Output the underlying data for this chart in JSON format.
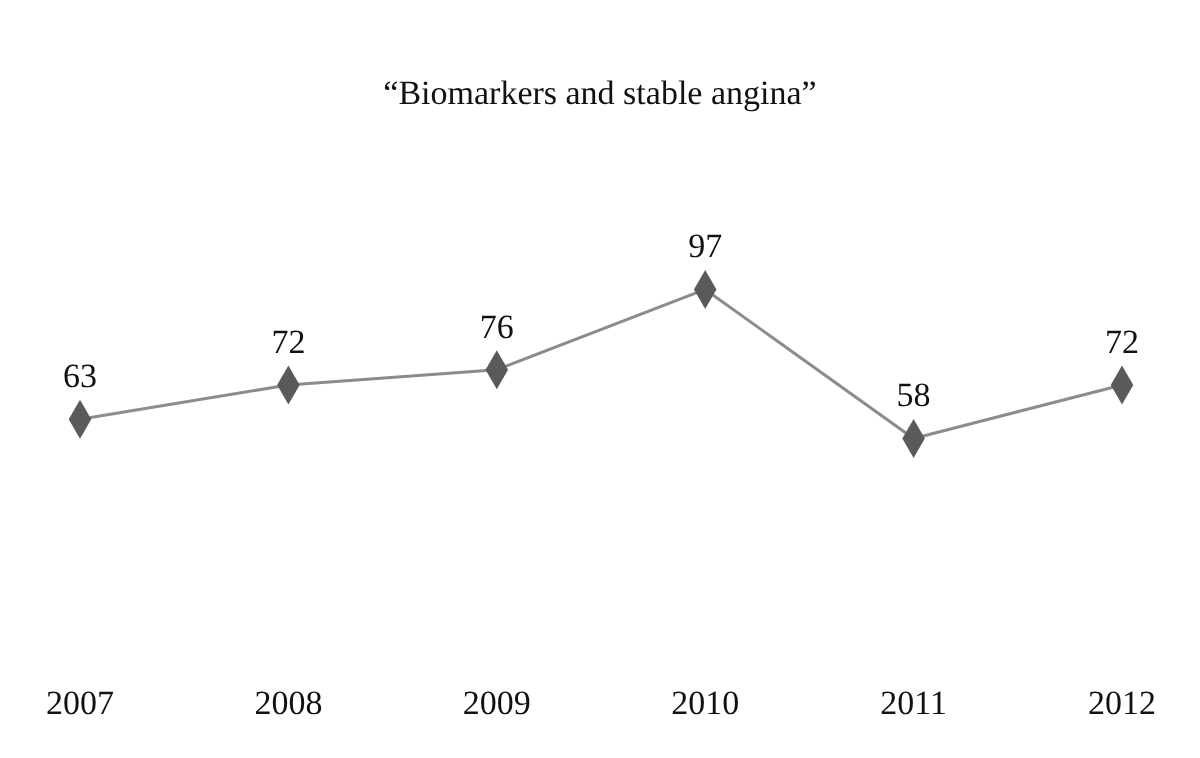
{
  "chart_data": {
    "type": "line",
    "title": "“Biomarkers and stable angina”",
    "categories": [
      "2007",
      "2008",
      "2009",
      "2010",
      "2011",
      "2012"
    ],
    "series": [
      {
        "color": "#5a5a5a",
        "values": [
          63,
          72,
          76,
          97,
          58,
          72
        ]
      }
    ],
    "marker": "diamond",
    "data_labels": true
  }
}
